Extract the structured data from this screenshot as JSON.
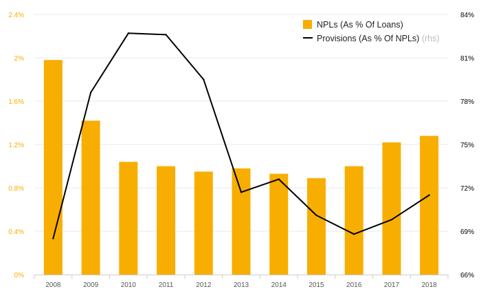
{
  "chart_data": {
    "type": "bar",
    "categories": [
      "2008",
      "2009",
      "2010",
      "2011",
      "2012",
      "2013",
      "2014",
      "2015",
      "2016",
      "2017",
      "2018"
    ],
    "series": [
      {
        "name": "NPLs (As % Of Loans)",
        "type": "bar",
        "axis": "left",
        "color": "#F8AE00",
        "values": [
          1.98,
          1.42,
          1.04,
          1.0,
          0.95,
          0.98,
          0.93,
          0.89,
          1.0,
          1.22,
          1.28
        ]
      },
      {
        "name": "Provisions (As % Of NPLs)",
        "name_suffix": "(rhs)",
        "type": "line",
        "axis": "right",
        "color": "#000000",
        "values": [
          68.5,
          78.6,
          82.7,
          82.6,
          79.5,
          71.7,
          72.6,
          70.1,
          68.8,
          69.8,
          71.5
        ]
      }
    ],
    "y_left": {
      "min": 0,
      "max": 2.4,
      "ticks": [
        0,
        0.4,
        0.8,
        1.2,
        1.6,
        2,
        2.4
      ],
      "tick_labels": [
        "0%",
        "0.4%",
        "0.8%",
        "1.2%",
        "1.6%",
        "2%",
        "2.4%"
      ],
      "color": "#F8AE00"
    },
    "y_right": {
      "min": 66,
      "max": 84,
      "ticks": [
        66,
        69,
        72,
        75,
        78,
        81,
        84
      ],
      "tick_labels": [
        "66%",
        "69%",
        "72%",
        "75%",
        "78%",
        "81%",
        "84%"
      ],
      "color": "#000000"
    },
    "grid": true,
    "legend_position": "top-right",
    "title": "",
    "xlabel": "",
    "ylabel": ""
  }
}
